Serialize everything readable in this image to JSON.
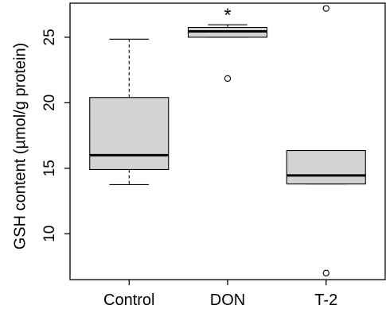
{
  "chart_data": {
    "type": "boxplot",
    "title": "",
    "xlabel": "",
    "ylabel": "GSH content (µmol/g protein)",
    "ylim": [
      6.5,
      27.6
    ],
    "yticks": [
      10,
      15,
      20,
      25
    ],
    "grid": false,
    "legend": "none",
    "colors": {
      "box_fill": "#d3d3d3",
      "stroke": "#000000",
      "background": "#ffffff"
    },
    "categories": [
      "Control",
      "DON",
      "T-2"
    ],
    "boxes": [
      {
        "category": "Control",
        "whisker_low": 13.75,
        "q1": 14.9,
        "median": 16.0,
        "q3": 20.4,
        "whisker_high": 24.85,
        "outliers": []
      },
      {
        "category": "DON",
        "whisker_low": 25.0,
        "q1": 25.0,
        "median": 25.45,
        "q3": 25.75,
        "whisker_high": 25.95,
        "outliers": [
          21.85
        ]
      },
      {
        "category": "T-2",
        "whisker_low": 13.8,
        "q1": 13.8,
        "median": 14.45,
        "q3": 16.35,
        "whisker_high": 16.35,
        "outliers": [
          27.2,
          7.0
        ]
      }
    ],
    "annotations": [
      {
        "category": "DON",
        "text": "*"
      }
    ]
  }
}
